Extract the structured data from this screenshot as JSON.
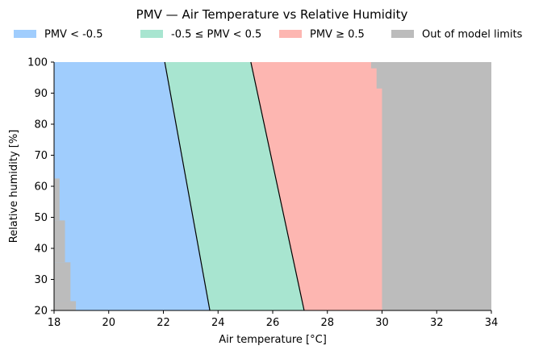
{
  "chart_data": {
    "type": "area",
    "title": "PMV — Air Temperature vs Relative Humidity",
    "xlabel": "Air temperature [°C]",
    "ylabel": "Relative humidity [%]",
    "xlim": [
      18,
      34
    ],
    "ylim": [
      20,
      100
    ],
    "xticks": [
      18,
      20,
      22,
      24,
      26,
      28,
      30,
      32,
      34
    ],
    "yticks": [
      20,
      30,
      40,
      50,
      60,
      70,
      80,
      90,
      100
    ],
    "legend_position": "top",
    "grid": false,
    "series": [
      {
        "name": "PMV < -0.5",
        "color": "#a0cdfd"
      },
      {
        "name": "-0.5 ≤ PMV < 0.5",
        "color": "#a8e5d0"
      },
      {
        "name": "PMV ≥ 0.5",
        "color": "#fdb6b1"
      },
      {
        "name": "Out of model limits",
        "color": "#bcbcbc"
      }
    ],
    "boundary_pmv_minus_0_5": {
      "rh": [
        20,
        100
      ],
      "temp": [
        23.7,
        22.05
      ]
    },
    "boundary_pmv_plus_0_5": {
      "rh": [
        20,
        100
      ],
      "temp": [
        27.15,
        25.2
      ]
    },
    "out_of_limits_hot": {
      "rh": [
        20,
        91.5,
        91.5,
        98,
        98,
        100
      ],
      "temp_from": [
        30.0,
        30.0,
        29.8,
        29.8,
        29.6,
        29.6
      ]
    },
    "out_of_limits_cold_steps": [
      {
        "rh_from": 20,
        "rh_to": 23,
        "temp_to": 18.8
      },
      {
        "rh_from": 23,
        "rh_to": 35.5,
        "temp_to": 18.6
      },
      {
        "rh_from": 35.5,
        "rh_to": 49,
        "temp_to": 18.4
      },
      {
        "rh_from": 49,
        "rh_to": 62.5,
        "temp_to": 18.2
      }
    ]
  }
}
